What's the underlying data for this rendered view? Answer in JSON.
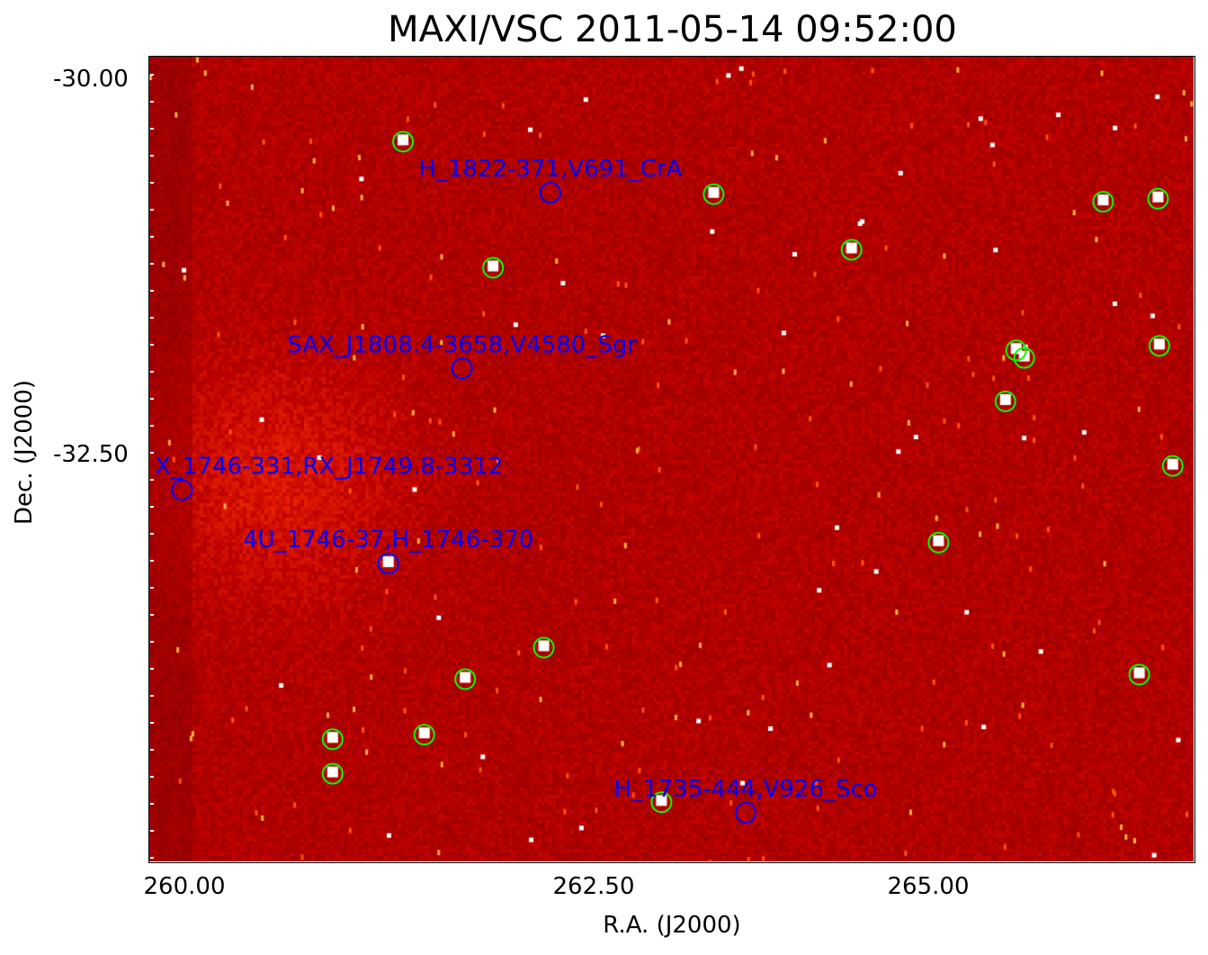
{
  "chart_data": {
    "type": "scatter",
    "title": "MAXI/VSC 2011-05-14 09:52:00",
    "xlabel": "R.A. (J2000)",
    "ylabel": "Dec. (J2000)",
    "x_ticks": [
      "260.00",
      "262.50",
      "265.00"
    ],
    "y_ticks": [
      "-30.00",
      "-32.50"
    ],
    "background": "X-ray count map, red-to-white colormap",
    "colors": {
      "detected": "#00ff00",
      "catalog": "#0000ff",
      "map_base": "#8b0000"
    },
    "detected_sources": [
      {
        "ra": 261.33,
        "dec": -30.41
      },
      {
        "ra": 261.88,
        "dec": -31.25
      },
      {
        "ra": 263.39,
        "dec": -30.76
      },
      {
        "ra": 264.42,
        "dec": -31.13
      },
      {
        "ra": 266.3,
        "dec": -30.81
      },
      {
        "ra": 266.71,
        "dec": -30.79
      },
      {
        "ra": 265.65,
        "dec": -31.8
      },
      {
        "ra": 265.71,
        "dec": -31.85
      },
      {
        "ra": 266.72,
        "dec": -31.77
      },
      {
        "ra": 265.57,
        "dec": -32.14
      },
      {
        "ra": 266.82,
        "dec": -32.57
      },
      {
        "ra": 265.07,
        "dec": -33.08
      },
      {
        "ra": 261.24,
        "dec": -33.22
      },
      {
        "ra": 262.19,
        "dec": -33.78
      },
      {
        "ra": 261.71,
        "dec": -33.99
      },
      {
        "ra": 266.57,
        "dec": -33.96
      },
      {
        "ra": 261.46,
        "dec": -34.36
      },
      {
        "ra": 260.9,
        "dec": -34.39
      },
      {
        "ra": 260.9,
        "dec": -34.62
      },
      {
        "ra": 263.0,
        "dec": -34.81
      }
    ],
    "catalog_sources": [
      {
        "ra": 262.23,
        "dec": -30.75,
        "label": "H_1822-371,V691_CrA"
      },
      {
        "ra": 261.69,
        "dec": -31.92,
        "label": "SAX_J1808.4-3658,V4580_Sgr"
      },
      {
        "ra": 259.98,
        "dec": -32.73,
        "label": "X_1746-331,RX_J1749.8-3312"
      },
      {
        "ra": 261.24,
        "dec": -33.22,
        "label": "4U_1746-37,H_1746-370"
      },
      {
        "ra": 263.63,
        "dec": -34.88,
        "label": "H_1735-444,V926_Sco"
      }
    ]
  }
}
